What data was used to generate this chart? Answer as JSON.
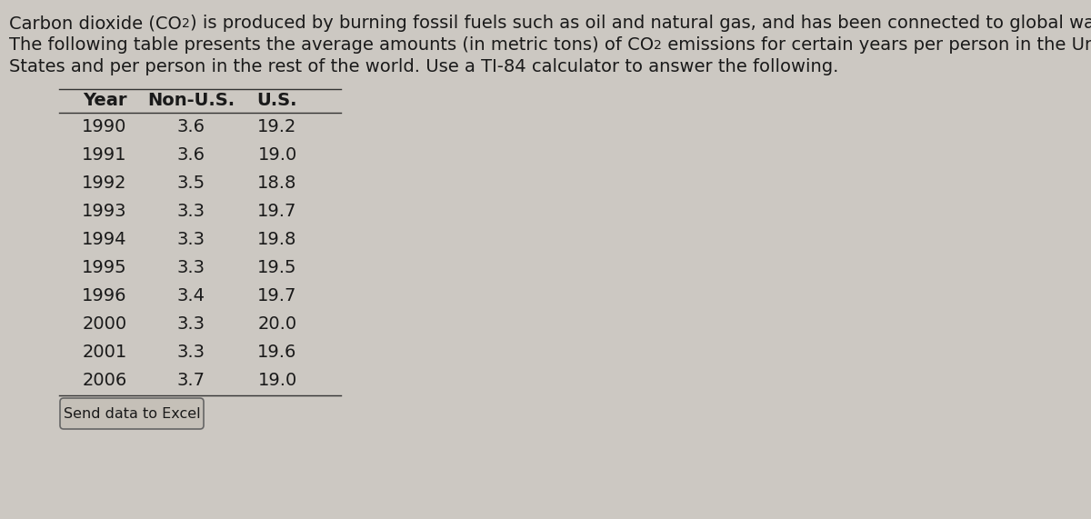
{
  "col_headers": [
    "Year",
    "Non-U.S.",
    "U.S."
  ],
  "rows": [
    [
      1990,
      3.6,
      19.2
    ],
    [
      1991,
      3.6,
      19.0
    ],
    [
      1992,
      3.5,
      18.8
    ],
    [
      1993,
      3.3,
      19.7
    ],
    [
      1994,
      3.3,
      19.8
    ],
    [
      1995,
      3.3,
      19.5
    ],
    [
      1996,
      3.4,
      19.7
    ],
    [
      2000,
      3.3,
      20.0
    ],
    [
      2001,
      3.3,
      19.6
    ],
    [
      2006,
      3.7,
      19.0
    ]
  ],
  "button_text": "Send data to Excel",
  "bg_color": "#ccc8c2",
  "text_color": "#1a1a1a",
  "font_size": 14,
  "line1_part1": "Carbon dioxide (CO",
  "line1_part2": ") is produced by burning fossil fuels such as oil and natural gas, and has been connected to global warming.",
  "line2_part1": "The following table presents the average amounts (in metric tons) of CO",
  "line2_part2": " emissions for certain years per person in the United",
  "line3": "States and per person in the rest of the world. Use a TI-84 calculator to answer the following."
}
